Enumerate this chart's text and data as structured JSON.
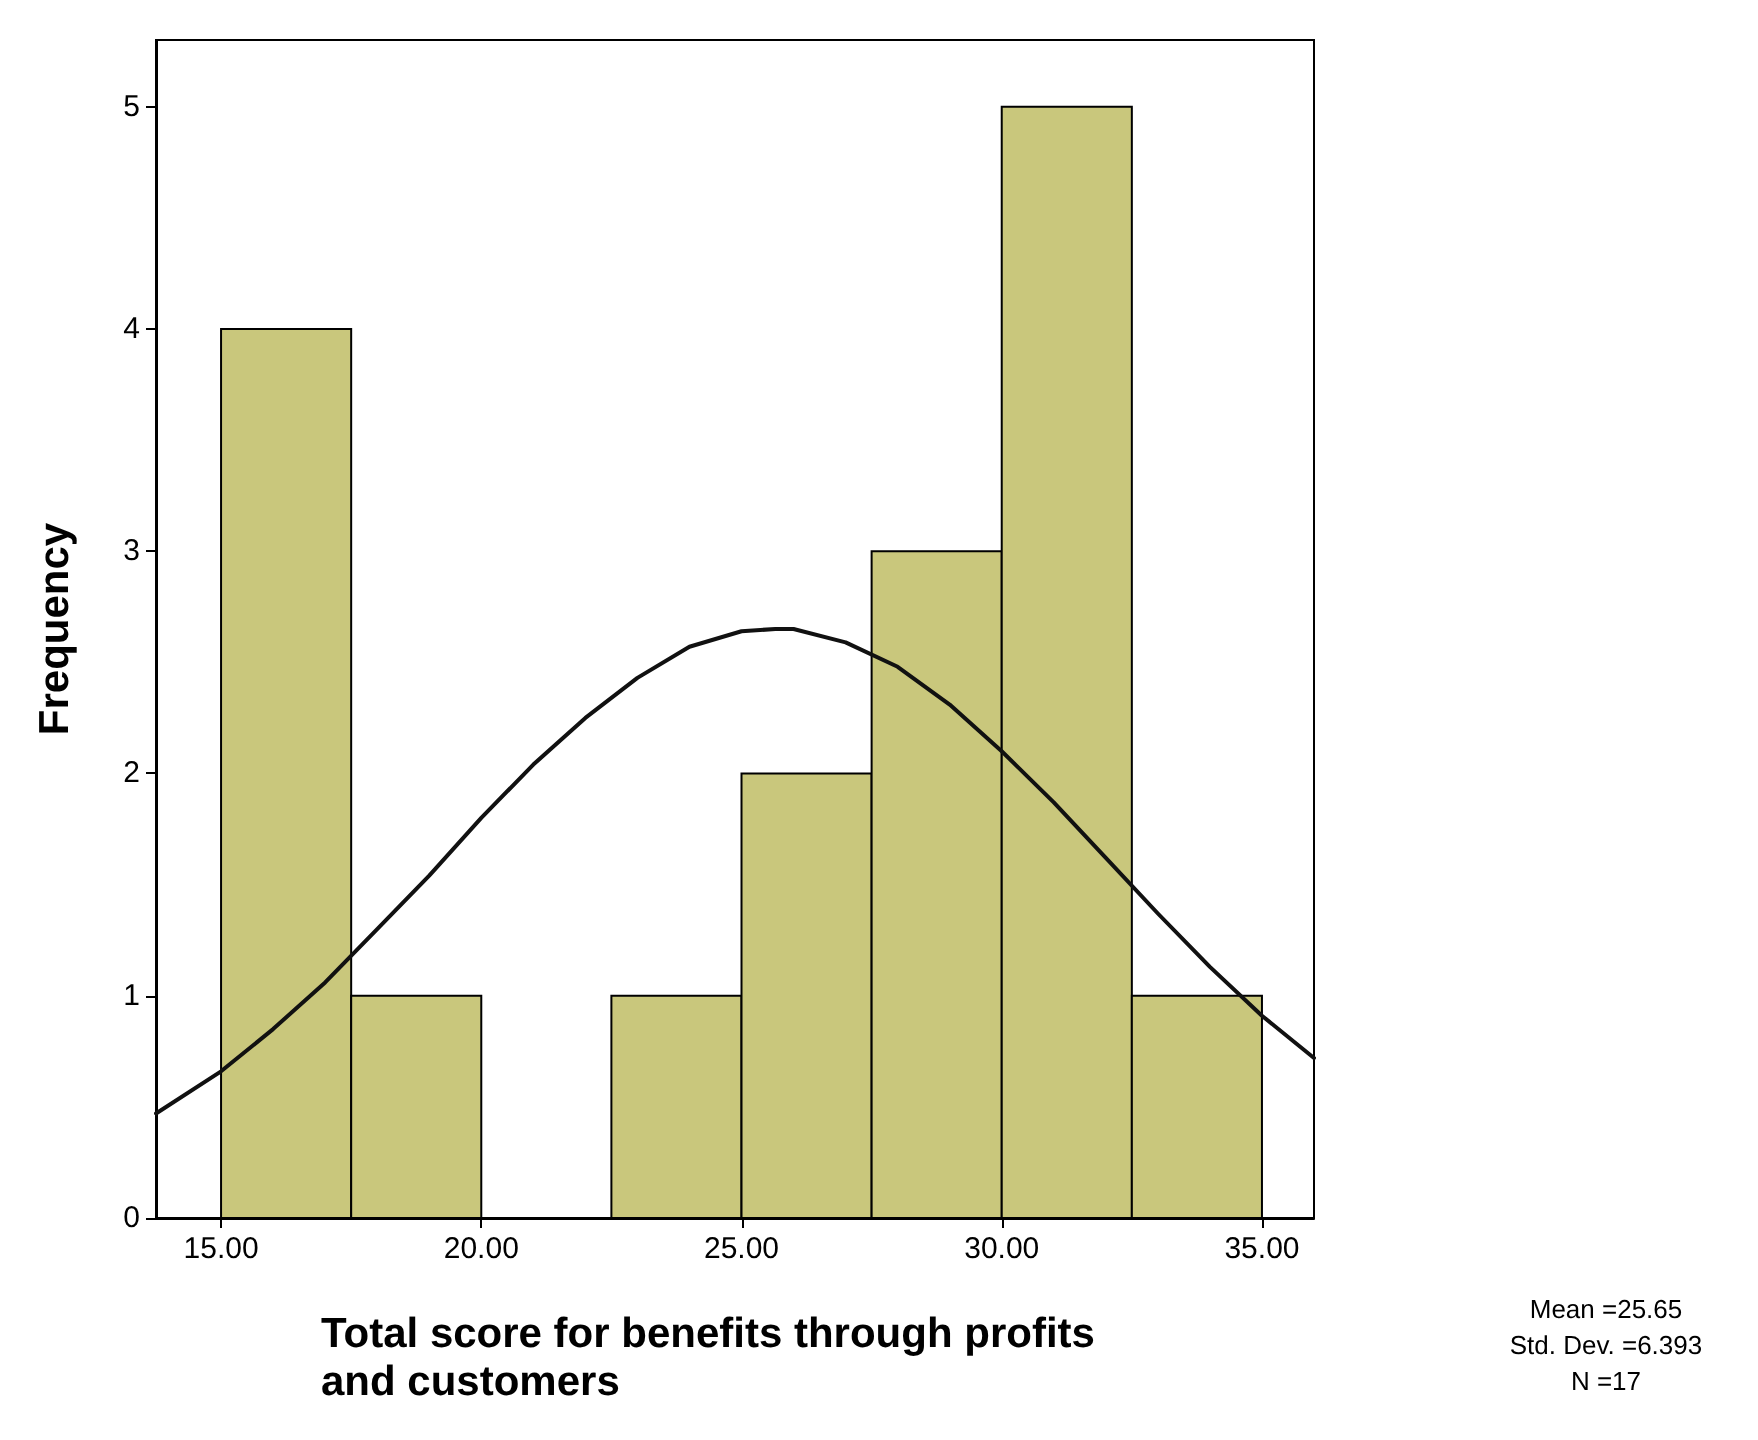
{
  "chart_data": {
    "type": "histogram",
    "xlabel": "Total score for benefits through profits and customers",
    "ylabel": "Frequency",
    "bins": [
      15,
      17.5,
      20,
      22.5,
      25,
      27.5,
      30,
      32.5,
      35
    ],
    "values": [
      4,
      1,
      0,
      1,
      2,
      3,
      5,
      1
    ],
    "color": "#c9c77c",
    "series": [
      {
        "type": "line",
        "color": "#111111",
        "x": [
          13.75,
          15,
          16,
          17,
          18,
          19,
          20,
          21,
          22,
          23,
          24,
          25,
          25.65,
          26,
          27,
          28,
          29,
          30,
          31,
          32,
          33,
          34,
          35,
          36
        ],
        "values": [
          0.47,
          0.66,
          0.85,
          1.06,
          1.3,
          1.54,
          1.8,
          2.04,
          2.25,
          2.43,
          2.57,
          2.64,
          2.65,
          2.65,
          2.59,
          2.48,
          2.31,
          2.1,
          1.87,
          1.62,
          1.37,
          1.13,
          0.91,
          0.72
        ]
      }
    ],
    "xlim": [
      13.75,
      36
    ],
    "ylim": [
      0,
      5.3
    ],
    "xticks": [
      {
        "value": 15,
        "label": "15.00"
      },
      {
        "value": 20,
        "label": "20.00"
      },
      {
        "value": 25,
        "label": "25.00"
      },
      {
        "value": 30,
        "label": "30.00"
      },
      {
        "value": 35,
        "label": "35.00"
      }
    ],
    "yticks": [
      0,
      1,
      2,
      3,
      4,
      5
    ],
    "annotations": [
      "Mean =25.65",
      "Std. Dev. =6.393",
      "N =17"
    ]
  }
}
